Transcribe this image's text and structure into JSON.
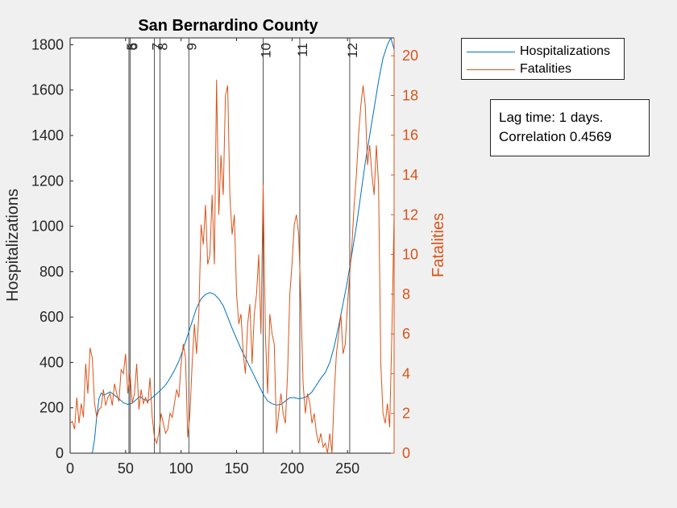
{
  "chart_data": {
    "type": "line",
    "title": "San Bernardino County",
    "xlabel": "",
    "ylabel_left": "Hospitalizations",
    "ylabel_right": "Fatalities",
    "xlim": [
      0,
      292
    ],
    "ylim_left": [
      0,
      1830
    ],
    "ylim_right": [
      0,
      20.9
    ],
    "xticks": [
      0,
      50,
      100,
      150,
      200,
      250
    ],
    "yticks_left": [
      0,
      200,
      400,
      600,
      800,
      1000,
      1200,
      1400,
      1600,
      1800
    ],
    "yticks_right": [
      0,
      2,
      4,
      6,
      8,
      10,
      12,
      14,
      16,
      18,
      20
    ],
    "grid": false,
    "legend_placement": "outside-top-right",
    "colors": {
      "hospitalizations": "#0072bd",
      "fatalities": "#d95319",
      "axis": "#262626",
      "background": "#f0f0f0"
    },
    "event_lines": [
      {
        "x": 53,
        "label": "5"
      },
      {
        "x": 54,
        "label": "6"
      },
      {
        "x": 76,
        "label": "7"
      },
      {
        "x": 81,
        "label": "8"
      },
      {
        "x": 107,
        "label": "9"
      },
      {
        "x": 174,
        "label": "10"
      },
      {
        "x": 207,
        "label": "11"
      },
      {
        "x": 252,
        "label": "12"
      }
    ],
    "series": [
      {
        "name": "Hospitalizations",
        "axis": "left",
        "points": [
          [
            20,
            0
          ],
          [
            22,
            60
          ],
          [
            24,
            160
          ],
          [
            26,
            240
          ],
          [
            28,
            265
          ],
          [
            30,
            255
          ],
          [
            33,
            262
          ],
          [
            36,
            270
          ],
          [
            40,
            255
          ],
          [
            44,
            240
          ],
          [
            48,
            222
          ],
          [
            52,
            215
          ],
          [
            56,
            220
          ],
          [
            60,
            238
          ],
          [
            63,
            250
          ],
          [
            66,
            238
          ],
          [
            70,
            230
          ],
          [
            74,
            245
          ],
          [
            78,
            262
          ],
          [
            82,
            280
          ],
          [
            86,
            300
          ],
          [
            90,
            330
          ],
          [
            94,
            365
          ],
          [
            98,
            405
          ],
          [
            102,
            460
          ],
          [
            106,
            520
          ],
          [
            110,
            580
          ],
          [
            114,
            640
          ],
          [
            118,
            680
          ],
          [
            122,
            700
          ],
          [
            126,
            708
          ],
          [
            130,
            700
          ],
          [
            134,
            680
          ],
          [
            138,
            650
          ],
          [
            142,
            600
          ],
          [
            146,
            550
          ],
          [
            150,
            505
          ],
          [
            154,
            460
          ],
          [
            158,
            420
          ],
          [
            162,
            380
          ],
          [
            166,
            340
          ],
          [
            170,
            300
          ],
          [
            174,
            260
          ],
          [
            178,
            230
          ],
          [
            182,
            218
          ],
          [
            186,
            212
          ],
          [
            190,
            215
          ],
          [
            194,
            230
          ],
          [
            198,
            245
          ],
          [
            202,
            245
          ],
          [
            206,
            240
          ],
          [
            210,
            243
          ],
          [
            214,
            252
          ],
          [
            218,
            270
          ],
          [
            222,
            300
          ],
          [
            226,
            330
          ],
          [
            230,
            355
          ],
          [
            234,
            400
          ],
          [
            238,
            470
          ],
          [
            242,
            560
          ],
          [
            246,
            660
          ],
          [
            250,
            760
          ],
          [
            254,
            880
          ],
          [
            258,
            1000
          ],
          [
            262,
            1140
          ],
          [
            266,
            1280
          ],
          [
            270,
            1400
          ],
          [
            274,
            1520
          ],
          [
            278,
            1640
          ],
          [
            282,
            1740
          ],
          [
            286,
            1800
          ],
          [
            289,
            1830
          ],
          [
            292,
            1780
          ]
        ]
      },
      {
        "name": "Fatalities",
        "axis": "left-right",
        "axis_note": "right",
        "points": [
          [
            0,
            1.5
          ],
          [
            2,
            1.6
          ],
          [
            4,
            1.2
          ],
          [
            6,
            2.8
          ],
          [
            8,
            1.5
          ],
          [
            10,
            2.5
          ],
          [
            12,
            1.8
          ],
          [
            14,
            4.5
          ],
          [
            16,
            3.0
          ],
          [
            18,
            5.3
          ],
          [
            20,
            4.8
          ],
          [
            22,
            2.5
          ],
          [
            24,
            1.8
          ],
          [
            26,
            2.2
          ],
          [
            28,
            2.3
          ],
          [
            30,
            3.2
          ],
          [
            32,
            2.4
          ],
          [
            34,
            2.8
          ],
          [
            36,
            3.0
          ],
          [
            38,
            2.4
          ],
          [
            40,
            3.5
          ],
          [
            42,
            3.0
          ],
          [
            44,
            2.6
          ],
          [
            46,
            4.2
          ],
          [
            48,
            4.0
          ],
          [
            50,
            5.0
          ],
          [
            52,
            3.0
          ],
          [
            54,
            4.0
          ],
          [
            56,
            2.5
          ],
          [
            58,
            3.0
          ],
          [
            60,
            4.5
          ],
          [
            62,
            2.2
          ],
          [
            64,
            3.2
          ],
          [
            66,
            2.5
          ],
          [
            68,
            2.8
          ],
          [
            70,
            2.5
          ],
          [
            72,
            3.8
          ],
          [
            74,
            1.8
          ],
          [
            76,
            0.8
          ],
          [
            78,
            0.5
          ],
          [
            80,
            1.0
          ],
          [
            82,
            2.0
          ],
          [
            84,
            1.5
          ],
          [
            86,
            1.0
          ],
          [
            88,
            1.2
          ],
          [
            90,
            2.0
          ],
          [
            92,
            1.8
          ],
          [
            94,
            2.5
          ],
          [
            96,
            3.2
          ],
          [
            98,
            2.8
          ],
          [
            100,
            4.5
          ],
          [
            102,
            5.5
          ],
          [
            104,
            4.8
          ],
          [
            106,
            0.8
          ],
          [
            108,
            2.0
          ],
          [
            110,
            4.5
          ],
          [
            112,
            6.5
          ],
          [
            114,
            5.0
          ],
          [
            116,
            7.0
          ],
          [
            118,
            11.5
          ],
          [
            120,
            10.5
          ],
          [
            122,
            12.5
          ],
          [
            124,
            9.5
          ],
          [
            126,
            10.0
          ],
          [
            128,
            13.0
          ],
          [
            130,
            9.5
          ],
          [
            132,
            18.8
          ],
          [
            134,
            12.0
          ],
          [
            136,
            15.0
          ],
          [
            138,
            13.0
          ],
          [
            140,
            18.0
          ],
          [
            142,
            18.5
          ],
          [
            144,
            13.0
          ],
          [
            146,
            11.0
          ],
          [
            148,
            12.0
          ],
          [
            150,
            8.0
          ],
          [
            152,
            6.5
          ],
          [
            154,
            7.0
          ],
          [
            156,
            5.0
          ],
          [
            158,
            4.0
          ],
          [
            160,
            6.5
          ],
          [
            162,
            7.5
          ],
          [
            164,
            4.5
          ],
          [
            166,
            7.0
          ],
          [
            168,
            8.0
          ],
          [
            170,
            10.0
          ],
          [
            172,
            6.0
          ],
          [
            174,
            13.5
          ],
          [
            176,
            6.0
          ],
          [
            178,
            3.0
          ],
          [
            180,
            7.0
          ],
          [
            182,
            6.0
          ],
          [
            184,
            5.5
          ],
          [
            186,
            1.0
          ],
          [
            188,
            2.0
          ],
          [
            190,
            3.0
          ],
          [
            192,
            2.0
          ],
          [
            194,
            1.5
          ],
          [
            196,
            4.0
          ],
          [
            198,
            8.0
          ],
          [
            200,
            9.5
          ],
          [
            202,
            11.5
          ],
          [
            204,
            12.0
          ],
          [
            206,
            11.0
          ],
          [
            208,
            7.5
          ],
          [
            210,
            3.5
          ],
          [
            212,
            2.0
          ],
          [
            214,
            3.0
          ],
          [
            216,
            2.5
          ],
          [
            218,
            1.5
          ],
          [
            220,
            2.0
          ],
          [
            222,
            1.0
          ],
          [
            224,
            0.5
          ],
          [
            226,
            1.0
          ],
          [
            228,
            0.3
          ],
          [
            230,
            0.5
          ],
          [
            232,
            0.0
          ],
          [
            234,
            1.0
          ],
          [
            236,
            0.0
          ],
          [
            238,
            3.0
          ],
          [
            240,
            5.0
          ],
          [
            242,
            6.0
          ],
          [
            244,
            7.0
          ],
          [
            246,
            5.0
          ],
          [
            248,
            5.5
          ],
          [
            250,
            7.5
          ],
          [
            252,
            9.0
          ],
          [
            254,
            10.5
          ],
          [
            256,
            12.5
          ],
          [
            258,
            14.0
          ],
          [
            260,
            16.0
          ],
          [
            262,
            17.5
          ],
          [
            264,
            18.5
          ],
          [
            266,
            17.5
          ],
          [
            268,
            14.5
          ],
          [
            270,
            15.5
          ],
          [
            272,
            14.0
          ],
          [
            274,
            13.0
          ],
          [
            276,
            15.5
          ],
          [
            278,
            13.5
          ],
          [
            280,
            4.5
          ],
          [
            282,
            2.0
          ],
          [
            284,
            1.5
          ],
          [
            286,
            2.5
          ],
          [
            288,
            1.3
          ],
          [
            290,
            6.0
          ],
          [
            292,
            12.0
          ],
          [
            294,
            20.0
          ],
          [
            296,
            16.0
          ]
        ]
      }
    ],
    "annotation": {
      "line1": "Lag time: 1 days.",
      "line2": "Correlation 0.4569"
    }
  }
}
